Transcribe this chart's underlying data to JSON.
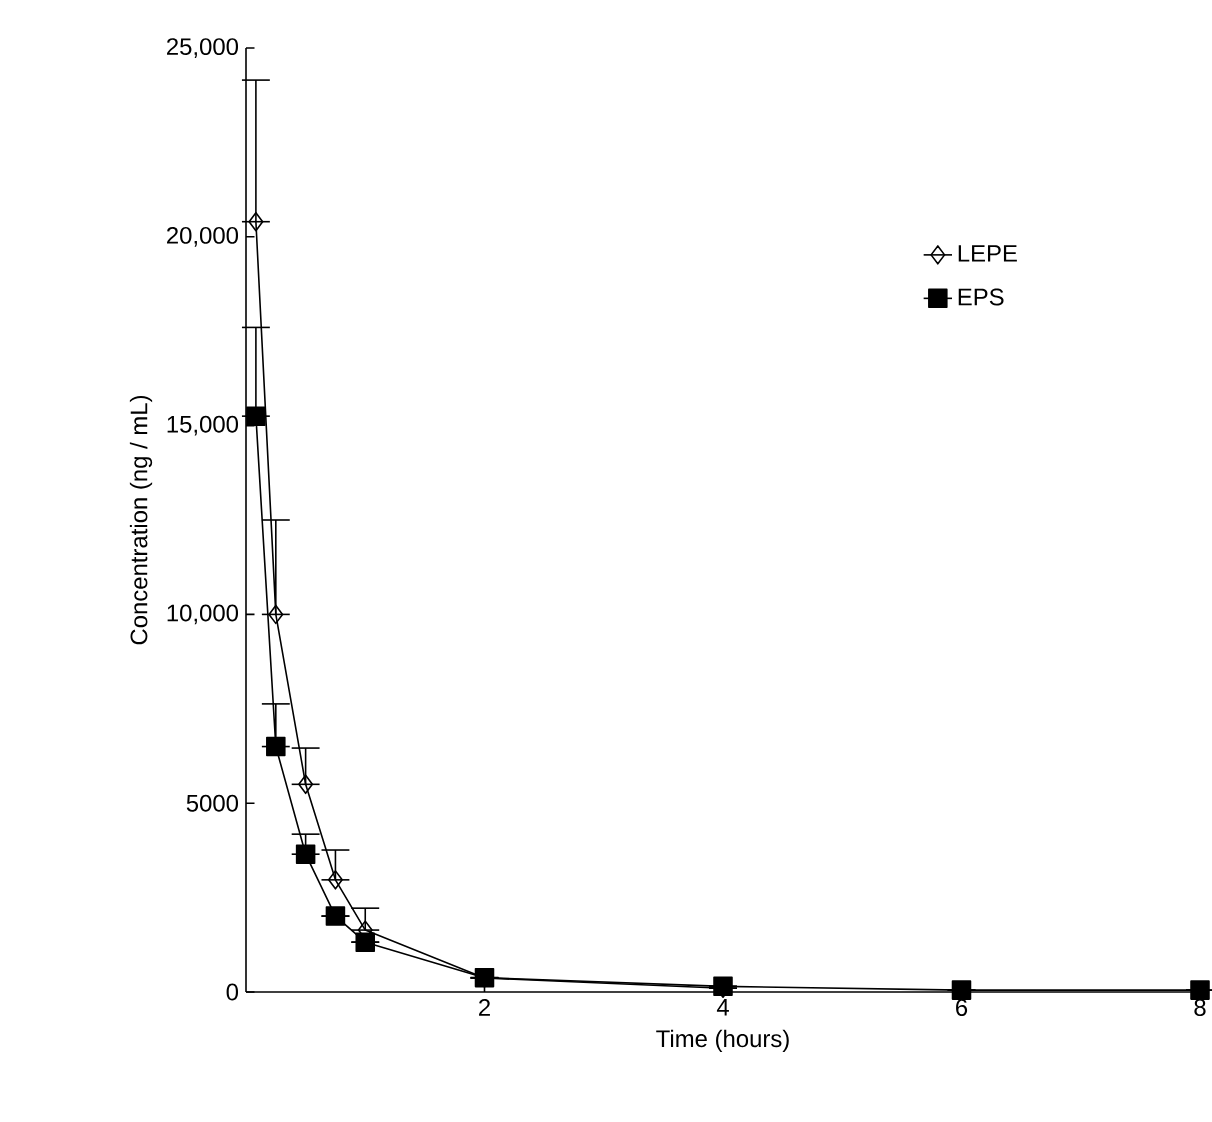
{
  "chart_data": {
    "type": "line",
    "xlabel": "Time (hours)",
    "ylabel": "Concentration (ng / mL)",
    "x": [
      0.083,
      0.25,
      0.5,
      0.75,
      1,
      2,
      4,
      6,
      8
    ],
    "series": [
      {
        "name": "LEPE",
        "color": "#000000",
        "marker": "diamond",
        "values": [
          20400,
          10000,
          5500,
          2970,
          1640,
          370,
          100,
          null,
          null
        ],
        "errors": [
          [
            20400,
            24150
          ],
          [
            10000,
            12500
          ],
          [
            5500,
            6460
          ],
          [
            2970,
            3760
          ],
          [
            1640,
            2220
          ],
          null,
          null,
          null,
          null
        ]
      },
      {
        "name": "EPS",
        "color": "#000000",
        "marker": "square",
        "values": [
          15250,
          6500,
          3650,
          2010,
          1320,
          380,
          150,
          50,
          50
        ],
        "errors": [
          [
            15250,
            17600
          ],
          [
            6500,
            7630
          ],
          [
            3650,
            4180
          ],
          null,
          null,
          null,
          null,
          null,
          null
        ]
      }
    ],
    "xlim": [
      0,
      8
    ],
    "ylim": [
      0,
      25000
    ],
    "xticks": [
      2,
      4,
      6,
      8
    ],
    "yticks": [
      0,
      5000,
      {
        "value": 10000,
        "label": "10,000"
      },
      {
        "value": 15000,
        "label": "15,000"
      },
      {
        "value": 20000,
        "label": "20,000"
      },
      {
        "value": 25000,
        "label": "25,000"
      }
    ],
    "legend": "top right",
    "grid": false,
    "line_style": "solid"
  }
}
